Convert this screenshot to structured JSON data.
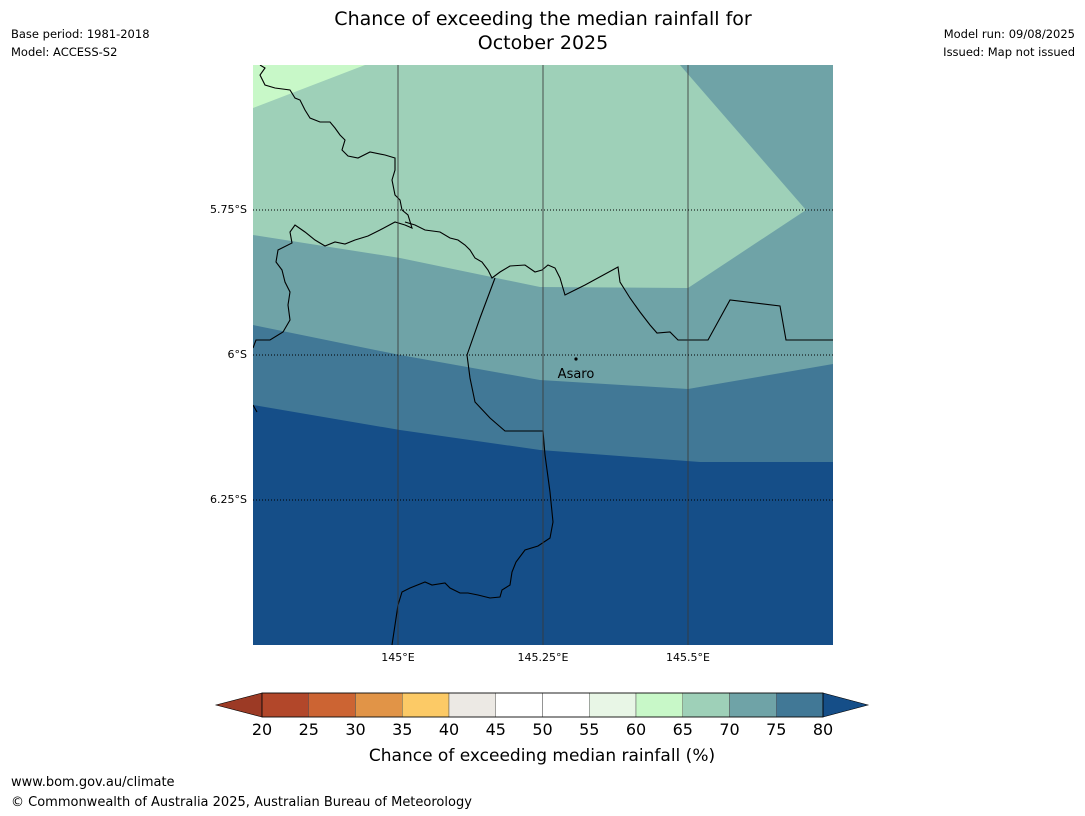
{
  "title_line1": "Chance of exceeding the median rainfall for",
  "title_line2": "October 2025",
  "meta_left": [
    "Base period: 1981-2018",
    "Model: ACCESS-S2"
  ],
  "meta_right": [
    "Model run: 09/08/2025",
    "Issued: Map not issued"
  ],
  "lat_labels": [
    "5.75°S",
    "6°S",
    "6.25°S"
  ],
  "lon_labels": [
    "145°E",
    "145.25°E",
    "145.5°E"
  ],
  "place": {
    "name": "Asaro"
  },
  "colorbar": {
    "ticks": [
      "20",
      "25",
      "30",
      "35",
      "40",
      "45",
      "50",
      "55",
      "60",
      "65",
      "70",
      "75",
      "80"
    ],
    "colors": [
      "#9c3a25",
      "#b2472a",
      "#cc6433",
      "#e19447",
      "#fcca66",
      "#ece9e4",
      "#ffffff",
      "#ffffff",
      "#e8f6e6",
      "#c8f8c8",
      "#9ed0b8",
      "#6fa3a7",
      "#417896",
      "#154e88"
    ],
    "label": "Chance of exceeding median rainfall (%)"
  },
  "footer": [
    "www.bom.gov.au/climate",
    "© Commonwealth of Australia 2025, Australian Bureau of Meteorology"
  ]
}
